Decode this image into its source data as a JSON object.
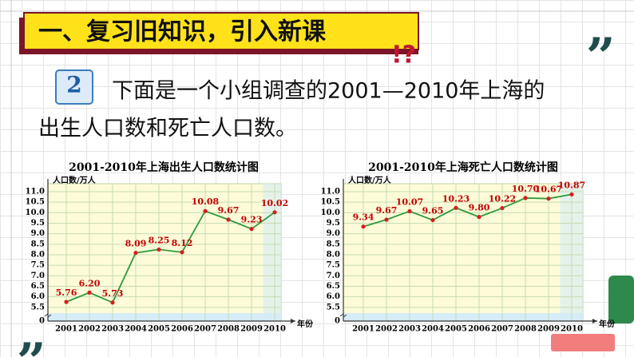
{
  "header": {
    "title": "一、复习旧知识，引入新课"
  },
  "problem": {
    "number": "2",
    "lines": [
      "下面是一个小组调查的2001—2010年上海的",
      "出生人口数和死亡人口数。"
    ]
  },
  "chart_data": [
    {
      "type": "line",
      "title": "2001-2010年上海出生人口数统计图",
      "y_label": "人口数/万人",
      "x_label": "年份",
      "categories": [
        "2001",
        "2002",
        "2003",
        "2004",
        "2005",
        "2006",
        "2007",
        "2008",
        "2009",
        "2010"
      ],
      "values": [
        5.76,
        6.2,
        5.73,
        8.09,
        8.25,
        8.12,
        10.08,
        9.67,
        9.23,
        10.02
      ],
      "value_labels": [
        "5.76",
        "6.20",
        "5.73",
        "8.09",
        "8.25",
        "8.12",
        "10.08",
        "9.67",
        "9.23",
        "10.02"
      ],
      "color": "#2f9a3c",
      "marker_color": "#d61f1f",
      "label_color": "#c00000",
      "ylim": [
        5,
        11
      ],
      "yticks": [
        0,
        5.5,
        {
          "value": 6,
          "label": "6.0"
        },
        6.5,
        {
          "value": 7,
          "label": "7.0"
        },
        7.5,
        {
          "value": 8,
          "label": "8.0"
        },
        8.5,
        {
          "value": 9,
          "label": "9.0"
        },
        9.5,
        {
          "value": 10,
          "label": "10.0"
        },
        10.5,
        {
          "value": 11,
          "label": "11.0"
        }
      ],
      "grid": true
    },
    {
      "type": "line",
      "title": "2001-2010年上海死亡人口数统计图",
      "y_label": "人口数/万人",
      "x_label": "年份",
      "categories": [
        "2001",
        "2002",
        "2003",
        "2004",
        "2005",
        "2006",
        "2007",
        "2008",
        "2009",
        "2010"
      ],
      "values": [
        9.34,
        9.67,
        10.07,
        9.65,
        10.23,
        9.8,
        10.22,
        10.7,
        10.67,
        10.87
      ],
      "value_labels": [
        "9.34",
        "9.67",
        "10.07",
        "9.65",
        "10.23",
        "9.80",
        "10.22",
        "10.70",
        "10.67",
        "10.87"
      ],
      "color": "#2f9a3c",
      "marker_color": "#d61f1f",
      "label_color": "#c00000",
      "ylim": [
        5,
        11
      ],
      "yticks": [
        0,
        5.5,
        {
          "value": 6,
          "label": "6.0"
        },
        6.5,
        {
          "value": 7,
          "label": "7.0"
        },
        7.5,
        {
          "value": 8,
          "label": "8.0"
        },
        8.5,
        {
          "value": 9,
          "label": "9.0"
        },
        9.5,
        {
          "value": 10,
          "label": "10.0"
        },
        10.5,
        {
          "value": 11,
          "label": "11.0"
        }
      ],
      "grid": true
    }
  ]
}
